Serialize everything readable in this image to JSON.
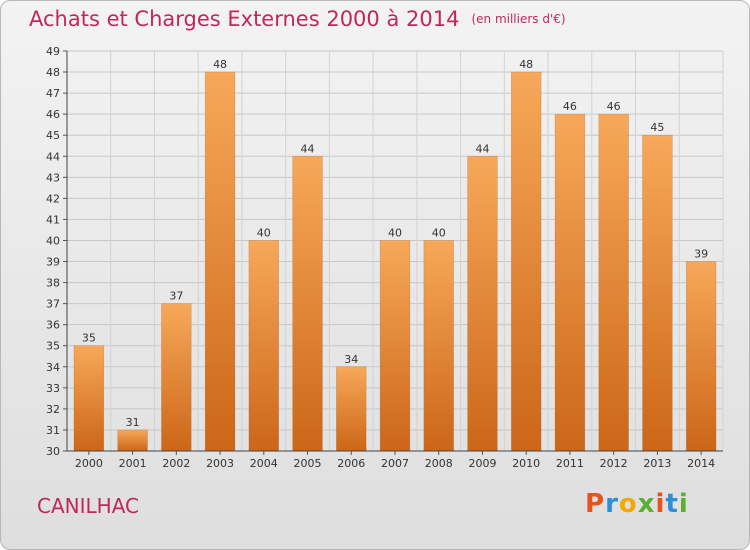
{
  "title": "Achats et Charges Externes 2000 à 2014",
  "unit_label": "(en milliers d'€)",
  "commune": "CANILHAC",
  "logo": {
    "text": "Proxiti",
    "colors": [
      "#e8531d",
      "#2d8fd6",
      "#f2a900",
      "#5ab031",
      "#e8531d",
      "#2d8fd6",
      "#5ab031"
    ]
  },
  "colors": {
    "bar_top": "#f7a85a",
    "bar_bottom": "#cc6618",
    "title": "#c0285a"
  },
  "chart_data": {
    "type": "bar",
    "categories": [
      "2000",
      "2001",
      "2002",
      "2003",
      "2004",
      "2005",
      "2006",
      "2007",
      "2008",
      "2009",
      "2010",
      "2011",
      "2012",
      "2013",
      "2014"
    ],
    "values": [
      35,
      31,
      37,
      48,
      40,
      44,
      34,
      40,
      40,
      44,
      48,
      46,
      46,
      45,
      39
    ],
    "title": "Achats et Charges Externes 2000 à 2014",
    "xlabel": "",
    "ylabel": "",
    "ylim": [
      30,
      49
    ],
    "yticks": [
      30,
      31,
      32,
      33,
      34,
      35,
      36,
      37,
      38,
      39,
      40,
      41,
      42,
      43,
      44,
      45,
      46,
      47,
      48,
      49
    ],
    "grid": true,
    "data_labels": true
  }
}
